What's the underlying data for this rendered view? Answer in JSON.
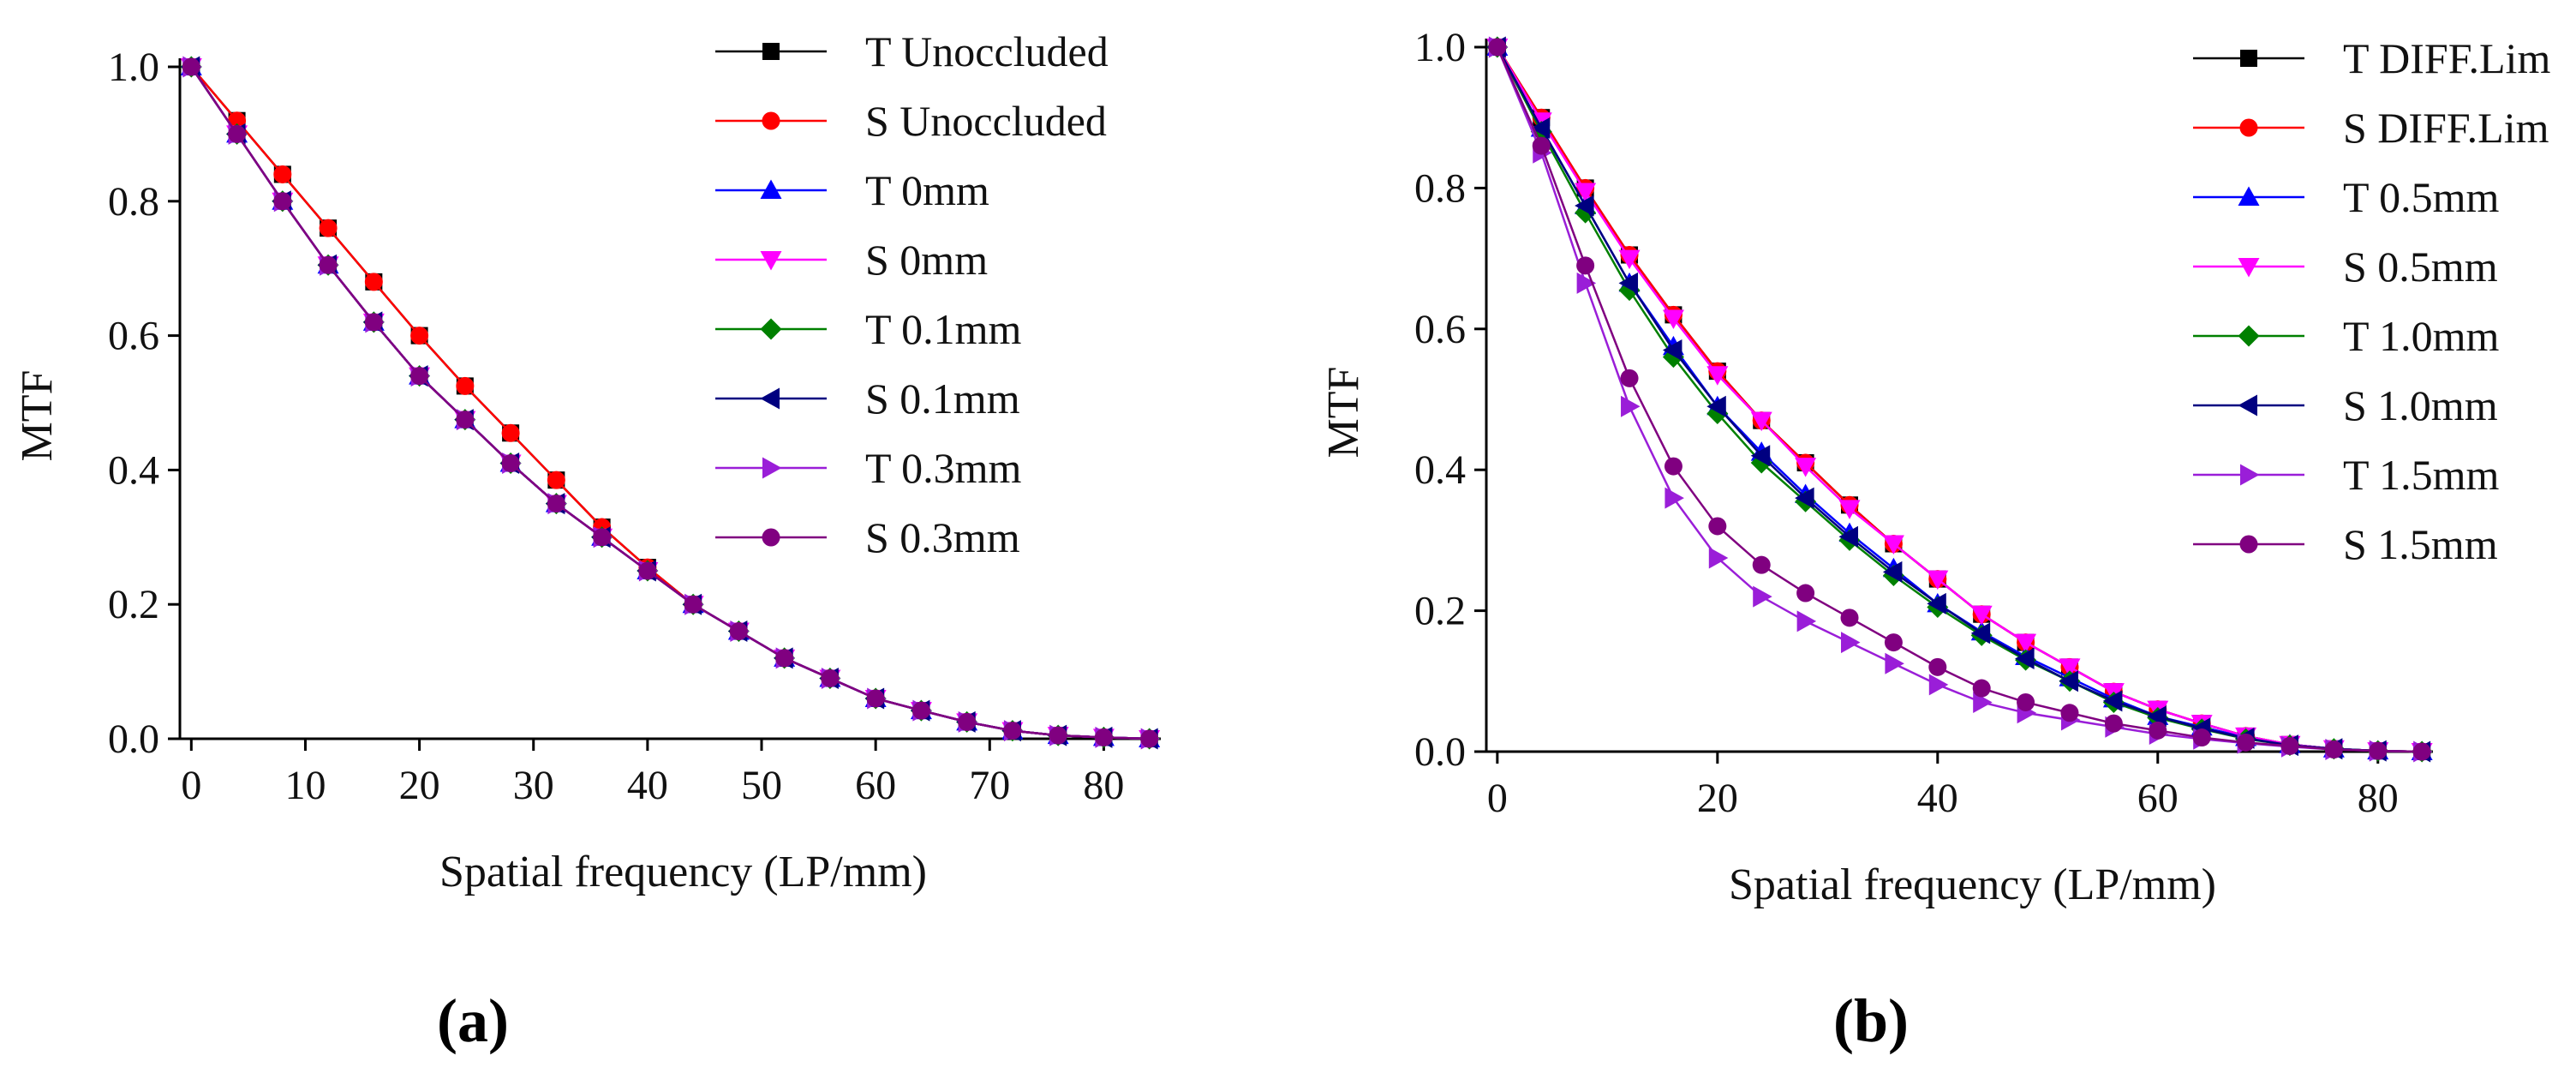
{
  "chart_data": [
    {
      "id": "a",
      "type": "line",
      "panel_label": "(a)",
      "xlabel": "Spatial frequency (LP/mm)",
      "ylabel": "MTF",
      "xlim": [
        -1,
        85
      ],
      "ylim": [
        0,
        1
      ],
      "xticks": [
        0,
        10,
        20,
        30,
        40,
        50,
        60,
        70,
        80
      ],
      "yticks": [
        0.0,
        0.2,
        0.4,
        0.6,
        0.8,
        1.0
      ],
      "ytick_labels": [
        "0.0",
        "0.2",
        "0.4",
        "0.6",
        "0.8",
        "1.0"
      ],
      "legend_position": "top-right",
      "x": [
        0,
        4,
        8,
        12,
        16,
        20,
        24,
        28,
        32,
        36,
        40,
        44,
        48,
        52,
        56,
        60,
        64,
        68,
        72,
        76,
        80,
        84
      ],
      "series": [
        {
          "name": "T Unoccluded",
          "color": "#000000",
          "marker": "square",
          "values": [
            1.0,
            0.92,
            0.84,
            0.76,
            0.68,
            0.6,
            0.525,
            0.455,
            0.385,
            0.315,
            0.255,
            0.2,
            0.16,
            0.12,
            0.09,
            0.06,
            0.042,
            0.025,
            0.012,
            0.005,
            0.002,
            0.0
          ]
        },
        {
          "name": "S Unoccluded",
          "color": "#ff0000",
          "marker": "circle",
          "values": [
            1.0,
            0.92,
            0.84,
            0.76,
            0.68,
            0.6,
            0.525,
            0.455,
            0.385,
            0.315,
            0.255,
            0.2,
            0.16,
            0.12,
            0.09,
            0.06,
            0.042,
            0.025,
            0.012,
            0.005,
            0.002,
            0.0
          ]
        },
        {
          "name": "T 0mm",
          "color": "#0000ff",
          "marker": "triangle-up",
          "values": [
            1.0,
            0.9,
            0.8,
            0.705,
            0.62,
            0.54,
            0.475,
            0.41,
            0.35,
            0.3,
            0.25,
            0.2,
            0.16,
            0.12,
            0.09,
            0.06,
            0.042,
            0.025,
            0.012,
            0.005,
            0.002,
            0.0
          ]
        },
        {
          "name": "S 0mm",
          "color": "#ff00ff",
          "marker": "triangle-down",
          "values": [
            1.0,
            0.9,
            0.8,
            0.705,
            0.62,
            0.54,
            0.475,
            0.41,
            0.35,
            0.3,
            0.25,
            0.2,
            0.16,
            0.12,
            0.09,
            0.06,
            0.042,
            0.025,
            0.012,
            0.005,
            0.002,
            0.0
          ]
        },
        {
          "name": "T 0.1mm",
          "color": "#008000",
          "marker": "diamond",
          "values": [
            1.0,
            0.9,
            0.8,
            0.705,
            0.62,
            0.54,
            0.475,
            0.41,
            0.35,
            0.3,
            0.25,
            0.2,
            0.16,
            0.12,
            0.09,
            0.06,
            0.042,
            0.025,
            0.012,
            0.005,
            0.002,
            0.0
          ]
        },
        {
          "name": "S 0.1mm",
          "color": "#000080",
          "marker": "triangle-left",
          "values": [
            1.0,
            0.9,
            0.8,
            0.705,
            0.62,
            0.54,
            0.475,
            0.41,
            0.35,
            0.3,
            0.25,
            0.2,
            0.16,
            0.12,
            0.09,
            0.06,
            0.042,
            0.025,
            0.012,
            0.005,
            0.002,
            0.0
          ]
        },
        {
          "name": "T 0.3mm",
          "color": "#9a1ed8",
          "marker": "triangle-right",
          "values": [
            1.0,
            0.9,
            0.8,
            0.705,
            0.62,
            0.54,
            0.475,
            0.41,
            0.35,
            0.3,
            0.25,
            0.2,
            0.16,
            0.12,
            0.09,
            0.06,
            0.042,
            0.025,
            0.012,
            0.005,
            0.002,
            0.0
          ]
        },
        {
          "name": "S 0.3mm",
          "color": "#800080",
          "marker": "circle",
          "values": [
            1.0,
            0.9,
            0.8,
            0.705,
            0.62,
            0.54,
            0.475,
            0.41,
            0.35,
            0.3,
            0.25,
            0.2,
            0.16,
            0.12,
            0.09,
            0.06,
            0.042,
            0.025,
            0.012,
            0.005,
            0.002,
            0.0
          ]
        }
      ]
    },
    {
      "id": "b",
      "type": "line",
      "panel_label": "(b)",
      "xlabel": "Spatial frequency (LP/mm)",
      "ylabel": "MTF",
      "xlim": [
        -1,
        85
      ],
      "ylim": [
        0,
        1
      ],
      "xticks": [
        0,
        20,
        40,
        60,
        80
      ],
      "yticks": [
        0.0,
        0.2,
        0.4,
        0.6,
        0.8,
        1.0
      ],
      "ytick_labels": [
        "0.0",
        "0.2",
        "0.4",
        "0.6",
        "0.8",
        "1.0"
      ],
      "legend_position": "top-right",
      "x": [
        0,
        4,
        8,
        12,
        16,
        20,
        24,
        28,
        32,
        36,
        40,
        44,
        48,
        52,
        56,
        60,
        64,
        68,
        72,
        76,
        80,
        84
      ],
      "series": [
        {
          "name": "T DIFF.Lim",
          "color": "#000000",
          "marker": "square",
          "values": [
            1.0,
            0.9,
            0.8,
            0.705,
            0.62,
            0.54,
            0.47,
            0.41,
            0.35,
            0.295,
            0.245,
            0.195,
            0.155,
            0.12,
            0.085,
            0.06,
            0.04,
            0.022,
            0.01,
            0.004,
            0.001,
            0.0
          ]
        },
        {
          "name": "S DIFF.Lim",
          "color": "#ff0000",
          "marker": "circle",
          "values": [
            1.0,
            0.9,
            0.8,
            0.705,
            0.62,
            0.54,
            0.47,
            0.41,
            0.35,
            0.295,
            0.245,
            0.195,
            0.155,
            0.12,
            0.085,
            0.06,
            0.04,
            0.022,
            0.01,
            0.004,
            0.001,
            0.0
          ]
        },
        {
          "name": "T 0.5mm",
          "color": "#0000ff",
          "marker": "triangle-up",
          "values": [
            1.0,
            0.885,
            0.775,
            0.665,
            0.575,
            0.49,
            0.425,
            0.365,
            0.31,
            0.26,
            0.21,
            0.17,
            0.135,
            0.105,
            0.075,
            0.05,
            0.035,
            0.02,
            0.01,
            0.004,
            0.001,
            0.0
          ]
        },
        {
          "name": "S 0.5mm",
          "color": "#ff00ff",
          "marker": "triangle-down",
          "values": [
            1.0,
            0.895,
            0.795,
            0.7,
            0.615,
            0.535,
            0.47,
            0.405,
            0.345,
            0.295,
            0.245,
            0.195,
            0.155,
            0.12,
            0.085,
            0.06,
            0.04,
            0.022,
            0.01,
            0.004,
            0.001,
            0.0
          ]
        },
        {
          "name": "T 1.0mm",
          "color": "#008000",
          "marker": "diamond",
          "values": [
            1.0,
            0.88,
            0.765,
            0.655,
            0.56,
            0.48,
            0.41,
            0.355,
            0.3,
            0.25,
            0.205,
            0.165,
            0.13,
            0.1,
            0.07,
            0.048,
            0.032,
            0.018,
            0.009,
            0.004,
            0.001,
            0.0
          ]
        },
        {
          "name": "S 1.0mm",
          "color": "#000080",
          "marker": "triangle-left",
          "values": [
            1.0,
            0.885,
            0.775,
            0.665,
            0.57,
            0.49,
            0.42,
            0.36,
            0.305,
            0.255,
            0.21,
            0.168,
            0.132,
            0.1,
            0.072,
            0.05,
            0.033,
            0.019,
            0.009,
            0.004,
            0.001,
            0.0
          ]
        },
        {
          "name": "T 1.5mm",
          "color": "#9a1ed8",
          "marker": "triangle-right",
          "values": [
            1.0,
            0.85,
            0.665,
            0.49,
            0.36,
            0.275,
            0.22,
            0.185,
            0.155,
            0.125,
            0.095,
            0.07,
            0.055,
            0.045,
            0.035,
            0.025,
            0.018,
            0.012,
            0.007,
            0.003,
            0.001,
            0.0
          ]
        },
        {
          "name": "S 1.5mm",
          "color": "#800080",
          "marker": "circle",
          "values": [
            1.0,
            0.86,
            0.69,
            0.53,
            0.405,
            0.32,
            0.265,
            0.225,
            0.19,
            0.155,
            0.12,
            0.09,
            0.07,
            0.055,
            0.04,
            0.03,
            0.02,
            0.013,
            0.008,
            0.003,
            0.001,
            0.0
          ]
        }
      ]
    }
  ]
}
